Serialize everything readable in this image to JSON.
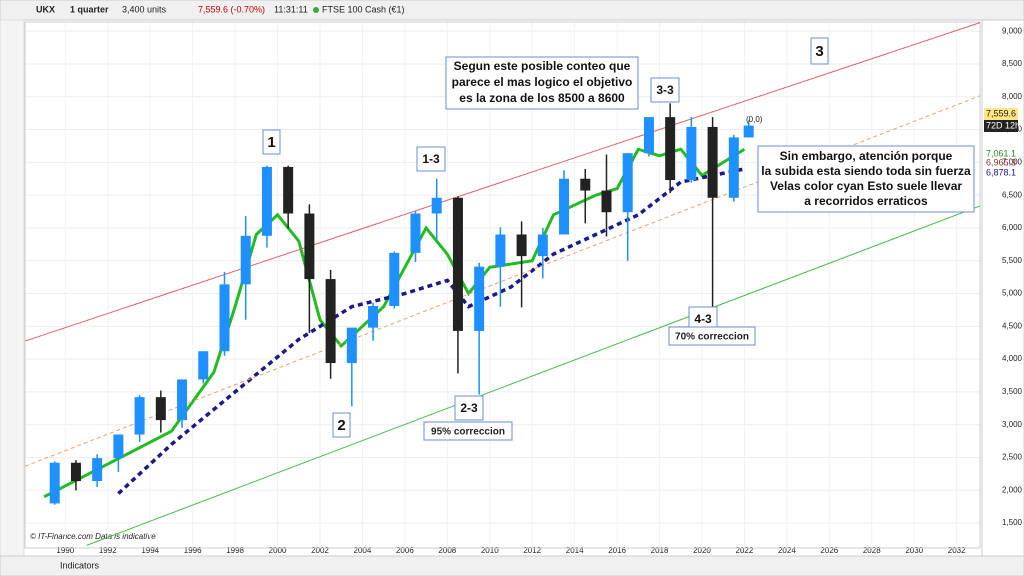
{
  "toolbar": {
    "symbol": "UKX",
    "period": "1 quarter",
    "units": "3,400 units",
    "price": "7,559.6 (-0.70%)",
    "time": "11:31:11",
    "instrument": "FTSE 100 Cash (€1)"
  },
  "price_labels": [
    "7,559.6",
    "72D 12h",
    "7,061.1",
    "6,965.3",
    "6,878.1"
  ],
  "footer": {
    "credit": "© IT-Finance.com  Data is indicative",
    "indicators": "Indicators"
  },
  "annotations": {
    "w1": "1",
    "w2": "2",
    "w13": "1-3",
    "w23": "2-3",
    "c95": "95% correccion",
    "w33": "3-3",
    "w43": "4-3",
    "c70": "70% correccion",
    "w3": "3",
    "last": "(0,0)",
    "note1": [
      "Segun este posible conteo que",
      "parece el mas logico el objetivo",
      "es la zona de los 8500 a 8600"
    ],
    "note2": [
      "Sin embargo, atención porque",
      "la subida esta siendo toda sin fuerza",
      "Velas color cyan Esto suele llevar",
      "a recorridos erraticos"
    ]
  },
  "chart_data": {
    "type": "candlestick",
    "xlim": [
      1988.1,
      2033.1
    ],
    "ylim": [
      1120,
      9140
    ],
    "xticks": [
      1990,
      1992,
      1994,
      1996,
      1998,
      2000,
      2002,
      2004,
      2006,
      2008,
      2010,
      2012,
      2014,
      2016,
      2018,
      2020,
      2022,
      2024,
      2026,
      2028,
      2030,
      2032
    ],
    "yticks": [
      {
        "value": 1500,
        "label": "1,500"
      },
      {
        "value": 2000,
        "label": "2,000"
      },
      {
        "value": 2500,
        "label": "2,500"
      },
      {
        "value": 3000,
        "label": "3,000"
      },
      {
        "value": 3500,
        "label": "3,500"
      },
      {
        "value": 4000,
        "label": "4,000"
      },
      {
        "value": 4500,
        "label": "4,500"
      },
      {
        "value": 5000,
        "label": "5,000"
      },
      {
        "value": 5500,
        "label": "5,500"
      },
      {
        "value": 6000,
        "label": "6,000"
      },
      {
        "value": 6500,
        "label": "6,500"
      },
      {
        "value": 7000,
        "label": "7,000"
      },
      {
        "value": 7500,
        "label": "7,500"
      },
      {
        "value": 8000,
        "label": "8,000"
      },
      {
        "value": 8500,
        "label": "8,500"
      },
      {
        "value": 9000,
        "label": "9,000"
      }
    ],
    "grid": true,
    "up_color": "#1e90ff",
    "down_color": "#222222",
    "x": [
      1989.5,
      1990.5,
      1991.5,
      1992.5,
      1993.5,
      1994.5,
      1995.5,
      1996.5,
      1997.5,
      1998.5,
      1999.5,
      2000.5,
      2001.5,
      2002.5,
      2003.5,
      2004.5,
      2005.5,
      2006.5,
      2007.5,
      2008.5,
      2009.5,
      2010.5,
      2011.5,
      2012.5,
      2013.5,
      2014.5,
      2015.5,
      2016.5,
      2017.5,
      2018.5,
      2019.5,
      2020.5,
      2021.5,
      2022.2
    ],
    "open": [
      1800,
      2420,
      2140,
      2490,
      2850,
      3420,
      3070,
      3690,
      4120,
      5140,
      5880,
      6930,
      6220,
      5220,
      3940,
      4480,
      4810,
      5620,
      6220,
      6460,
      4430,
      5410,
      5900,
      5570,
      5900,
      6750,
      6570,
      6240,
      7140,
      7690,
      6730,
      7540,
      6460,
      7380
    ],
    "high": [
      2440,
      2460,
      2550,
      2850,
      3450,
      3520,
      3690,
      4120,
      5330,
      6180,
      6950,
      6950,
      6360,
      5360,
      4470,
      4860,
      5640,
      6260,
      6750,
      6480,
      5470,
      6010,
      6100,
      6000,
      6880,
      6900,
      7120,
      7140,
      7690,
      7900,
      7690,
      7690,
      7420,
      7640
    ],
    "low": [
      1780,
      2000,
      2050,
      2280,
      2740,
      2880,
      2950,
      3630,
      4050,
      4600,
      5700,
      5990,
      4400,
      3700,
      3280,
      4280,
      4770,
      5480,
      5820,
      3780,
      3460,
      4800,
      4790,
      5230,
      5900,
      6070,
      5870,
      5500,
      7090,
      6530,
      6690,
      4800,
      6400,
      7380
    ],
    "close": [
      2420,
      2140,
      2490,
      2850,
      3420,
      3070,
      3690,
      4120,
      5140,
      5880,
      6930,
      6220,
      5220,
      3940,
      4480,
      4810,
      5620,
      6220,
      6460,
      4430,
      5410,
      5900,
      5570,
      5900,
      6750,
      6570,
      6240,
      7140,
      7690,
      6730,
      7540,
      6460,
      7380,
      7560
    ],
    "lines": [
      {
        "color": "#22bb22",
        "width": 3,
        "dash": "",
        "x": [
          1989,
          1992,
          1995,
          1997,
          1998,
          1999,
          2000,
          2001,
          2002,
          2003,
          2005,
          2007,
          2008,
          2009,
          2010,
          2012,
          2013,
          2015,
          2016,
          2017,
          2018,
          2019,
          2020,
          2021,
          2022
        ],
        "values": [
          1900,
          2400,
          2900,
          3800,
          4800,
          5900,
          6200,
          5800,
          4600,
          4200,
          4800,
          6000,
          5600,
          5000,
          5400,
          5500,
          6200,
          6500,
          6600,
          7200,
          7100,
          7200,
          6800,
          7000,
          7200
        ]
      },
      {
        "color": "#1a1a8c",
        "width": 3.5,
        "dash": "5 4",
        "x": [
          1992.5,
          1995,
          1998,
          2001,
          2003.5,
          2006,
          2008,
          2009,
          2011,
          2013,
          2015,
          2017,
          2019,
          2020.5,
          2022
        ],
        "values": [
          1950,
          2700,
          3500,
          4300,
          4800,
          5000,
          5200,
          4800,
          5100,
          5600,
          5900,
          6200,
          6700,
          6800,
          6900
        ]
      },
      {
        "color": "#e06060",
        "width": 1,
        "dash": "",
        "x": [
          1988.1,
          2033.1
        ],
        "values": [
          4275,
          9130
        ]
      },
      {
        "color": "#f0a070",
        "width": 1,
        "dash": "4 3",
        "x": [
          1988.1,
          2033.1
        ],
        "values": [
          2366,
          8015
        ]
      },
      {
        "color": "#44bb44",
        "width": 1,
        "dash": "",
        "x": [
          1991,
          2033.1
        ],
        "values": [
          1160,
          6335
        ]
      }
    ]
  }
}
